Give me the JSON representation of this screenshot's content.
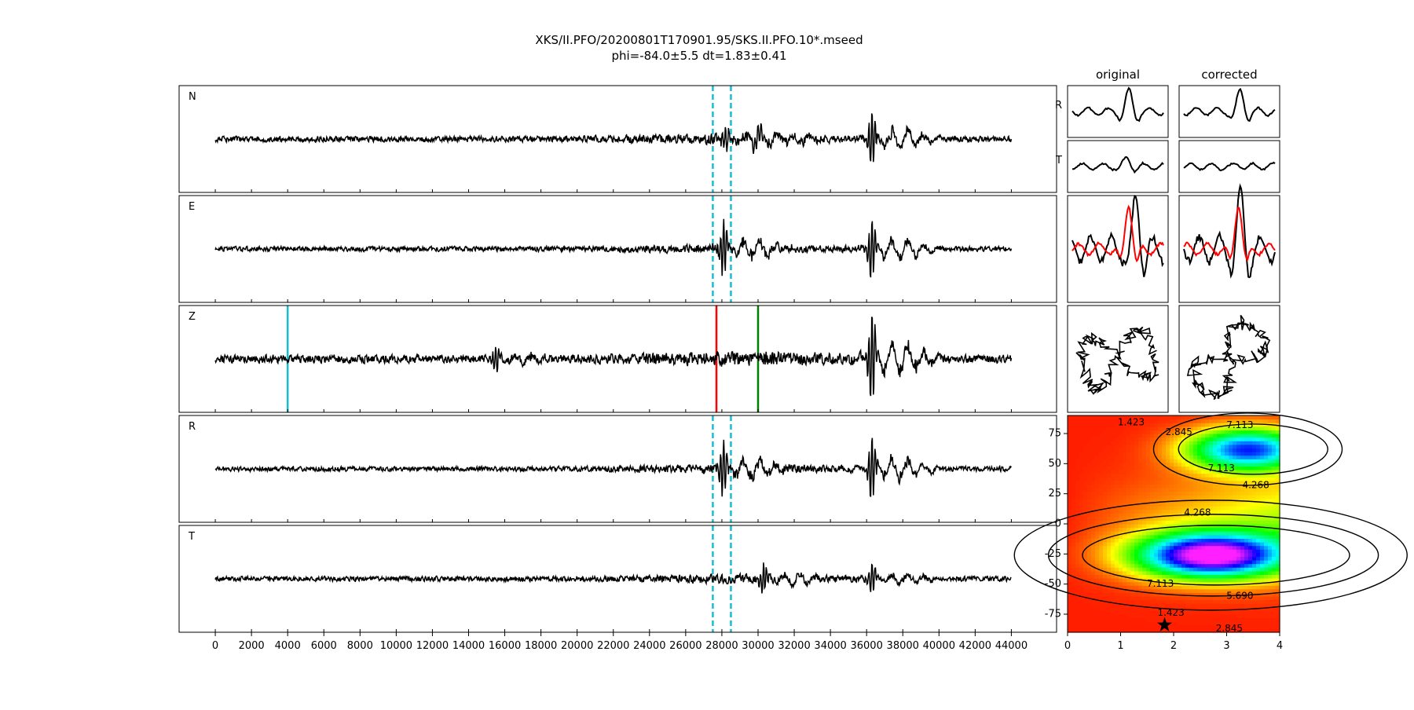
{
  "title_line1": "XKS/II.PFO/20200801T170901.95/SKS.II.PFO.10*.mseed",
  "title_line2": "phi=-84.0±5.5 dt=1.83±0.41",
  "colors": {
    "trace": "#000000",
    "window_marker": "#17becf",
    "pick_cyan": "#17becf",
    "pick_red": "#ff0000",
    "pick_green": "#008000",
    "corrected_overlay": "#ff0000"
  },
  "chart_data": [
    {
      "type": "line",
      "name": "waveforms",
      "panels": [
        "N",
        "E",
        "Z",
        "R",
        "T"
      ],
      "xlim": [
        -2000,
        46500
      ],
      "x_ticks": [
        0,
        2000,
        4000,
        6000,
        8000,
        10000,
        12000,
        14000,
        16000,
        18000,
        20000,
        22000,
        24000,
        26000,
        28000,
        30000,
        32000,
        34000,
        36000,
        38000,
        40000,
        42000,
        44000
      ],
      "x_tick_labels": [
        "0",
        "2000",
        "4000",
        "6000",
        "8000",
        "10000",
        "12000",
        "14000",
        "16000",
        "18000",
        "20000",
        "22000",
        "24000",
        "26000",
        "28000",
        "30000",
        "32000",
        "34000",
        "36000",
        "38000",
        "40000",
        "42000",
        "44000"
      ],
      "data_range": [
        0,
        44000
      ],
      "window_lines": {
        "panels": [
          "N",
          "E",
          "R",
          "T"
        ],
        "x": [
          27500,
          28500
        ],
        "style": "dashed"
      },
      "picks_on_Z": [
        {
          "x": 4000,
          "color": "cyan"
        },
        {
          "x": 27700,
          "color": "red"
        },
        {
          "x": 30000,
          "color": "green"
        }
      ],
      "bursts": {
        "N": [
          {
            "x": 28200,
            "amp": 0.25
          },
          {
            "x": 30000,
            "amp": 0.28
          },
          {
            "x": 36300,
            "amp": 0.62
          }
        ],
        "E": [
          {
            "x": 28100,
            "amp": 0.55
          },
          {
            "x": 36300,
            "amp": 0.62
          }
        ],
        "Z": [
          {
            "x": 15500,
            "amp": 0.25
          },
          {
            "x": 36300,
            "amp": 1.0
          }
        ],
        "R": [
          {
            "x": 28100,
            "amp": 0.6
          },
          {
            "x": 36300,
            "amp": 0.7
          }
        ],
        "T": [
          {
            "x": 30300,
            "amp": 0.3
          },
          {
            "x": 36300,
            "amp": 0.35
          }
        ]
      },
      "noise_level": {
        "N": 0.07,
        "E": 0.06,
        "Z": 0.1,
        "R": 0.06,
        "T": 0.06
      }
    },
    {
      "type": "line",
      "name": "particle-panels",
      "column_titles": [
        "original",
        "corrected"
      ],
      "row_labels": [
        "R",
        "T"
      ]
    },
    {
      "type": "heatmap",
      "name": "energy-grid",
      "xlim": [
        0,
        4
      ],
      "ylim": [
        -90,
        90
      ],
      "x_ticks": [
        0,
        1,
        2,
        3,
        4
      ],
      "y_ticks": [
        75,
        50,
        25,
        0,
        -25,
        -50,
        -75
      ],
      "contour_levels": [
        1.423,
        2.845,
        4.268,
        5.69,
        7.113
      ],
      "contour_labels": [
        "1.423",
        "2.845",
        "4.268",
        "5.690",
        "7.113"
      ],
      "best": {
        "dt": 1.83,
        "phi": -84.0
      }
    }
  ]
}
